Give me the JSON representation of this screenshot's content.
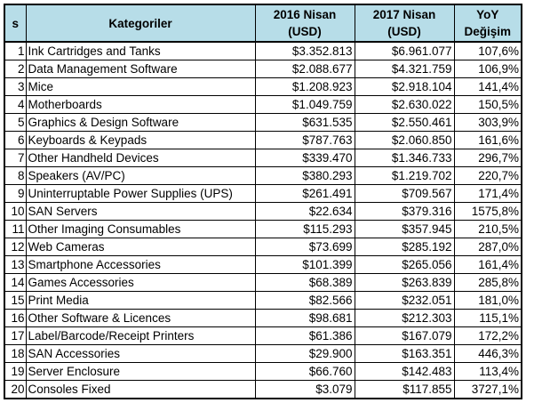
{
  "header": {
    "s": "s",
    "kategoriler": "Kategoriler",
    "col2016": "2016 Nisan (USD)",
    "col2017": "2017 Nisan (USD)",
    "yoy": "YoY Değişim"
  },
  "rows": [
    {
      "s": "1",
      "kategori": "Ink Cartridges and Tanks",
      "y2016": "$3.352.813",
      "y2017": "$6.961.077",
      "yoy": "107,6%"
    },
    {
      "s": "2",
      "kategori": "Data Management Software",
      "y2016": "$2.088.677",
      "y2017": "$4.321.759",
      "yoy": "106,9%"
    },
    {
      "s": "3",
      "kategori": "Mice",
      "y2016": "$1.208.923",
      "y2017": "$2.918.104",
      "yoy": "141,4%"
    },
    {
      "s": "4",
      "kategori": "Motherboards",
      "y2016": "$1.049.759",
      "y2017": "$2.630.022",
      "yoy": "150,5%"
    },
    {
      "s": "5",
      "kategori": "Graphics & Design Software",
      "y2016": "$631.535",
      "y2017": "$2.550.461",
      "yoy": "303,9%"
    },
    {
      "s": "6",
      "kategori": "Keyboards & Keypads",
      "y2016": "$787.763",
      "y2017": "$2.060.850",
      "yoy": "161,6%"
    },
    {
      "s": "7",
      "kategori": "Other Handheld Devices",
      "y2016": "$339.470",
      "y2017": "$1.346.733",
      "yoy": "296,7%"
    },
    {
      "s": "8",
      "kategori": "Speakers (AV/PC)",
      "y2016": "$380.293",
      "y2017": "$1.219.702",
      "yoy": "220,7%"
    },
    {
      "s": "9",
      "kategori": "Uninterruptable Power Supplies (UPS)",
      "y2016": "$261.491",
      "y2017": "$709.567",
      "yoy": "171,4%"
    },
    {
      "s": "10",
      "kategori": "SAN Servers",
      "y2016": "$22.634",
      "y2017": "$379.316",
      "yoy": "1575,8%"
    },
    {
      "s": "11",
      "kategori": "Other Imaging Consumables",
      "y2016": "$115.293",
      "y2017": "$357.945",
      "yoy": "210,5%"
    },
    {
      "s": "12",
      "kategori": "Web Cameras",
      "y2016": "$73.699",
      "y2017": "$285.192",
      "yoy": "287,0%"
    },
    {
      "s": "13",
      "kategori": "Smartphone Accessories",
      "y2016": "$101.399",
      "y2017": "$265.056",
      "yoy": "161,4%"
    },
    {
      "s": "14",
      "kategori": "Games Accessories",
      "y2016": "$68.389",
      "y2017": "$263.839",
      "yoy": "285,8%"
    },
    {
      "s": "15",
      "kategori": "Print Media",
      "y2016": "$82.566",
      "y2017": "$232.051",
      "yoy": "181,0%"
    },
    {
      "s": "16",
      "kategori": "Other Software & Licences",
      "y2016": "$98.681",
      "y2017": "$212.303",
      "yoy": "115,1%"
    },
    {
      "s": "17",
      "kategori": "Label/Barcode/Receipt Printers",
      "y2016": "$61.386",
      "y2017": "$167.079",
      "yoy": "172,2%"
    },
    {
      "s": "18",
      "kategori": "SAN Accessories",
      "y2016": "$29.900",
      "y2017": "$163.351",
      "yoy": "446,3%"
    },
    {
      "s": "19",
      "kategori": "Server Enclosure",
      "y2016": "$66.760",
      "y2017": "$142.483",
      "yoy": "113,4%"
    },
    {
      "s": "20",
      "kategori": "Consoles Fixed",
      "y2016": "$3.079",
      "y2017": "$117.855",
      "yoy": "3727,1%"
    }
  ],
  "colors": {
    "header_fill": "#b7dde8",
    "border": "#000000"
  }
}
